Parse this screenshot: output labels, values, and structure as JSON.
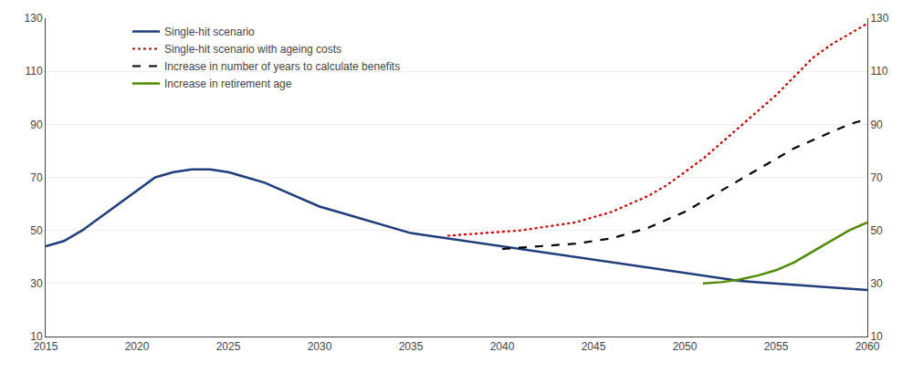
{
  "chart_data": {
    "type": "line",
    "x": [
      2015,
      2016,
      2017,
      2018,
      2019,
      2020,
      2021,
      2022,
      2023,
      2024,
      2025,
      2026,
      2027,
      2028,
      2029,
      2030,
      2031,
      2032,
      2033,
      2034,
      2035,
      2036,
      2037,
      2038,
      2039,
      2040,
      2041,
      2042,
      2043,
      2044,
      2045,
      2046,
      2047,
      2048,
      2049,
      2050,
      2051,
      2052,
      2053,
      2054,
      2055,
      2056,
      2057,
      2058,
      2059,
      2060
    ],
    "series": [
      {
        "name": "Single-hit scenario",
        "color": "#1f3d7a",
        "line_style": "solid",
        "values": [
          44,
          46,
          50,
          55,
          60,
          65,
          70,
          72,
          73,
          73,
          72,
          70,
          68,
          65,
          62,
          59,
          57,
          55,
          53,
          51,
          49,
          48,
          47,
          46,
          45,
          44,
          43,
          42,
          41,
          40,
          39,
          38,
          37,
          36,
          35,
          34,
          33,
          32,
          31,
          30.5,
          30,
          29.5,
          29,
          28.5,
          28,
          27.5
        ]
      },
      {
        "name": "Single-hit scenario with ageing costs",
        "color": "#cc0000",
        "line_style": "dotted",
        "values": [
          null,
          null,
          null,
          null,
          null,
          null,
          null,
          null,
          null,
          null,
          null,
          null,
          null,
          null,
          null,
          null,
          null,
          null,
          null,
          null,
          null,
          null,
          48,
          48.5,
          49,
          49.5,
          50,
          51,
          52,
          53,
          55,
          57,
          60,
          63,
          67,
          72,
          77,
          83,
          89,
          95,
          101,
          108,
          115,
          120,
          124,
          128
        ]
      },
      {
        "name": "Increase in number of years to calculate benefits",
        "color": "#000000",
        "line_style": "dashed",
        "values": [
          null,
          null,
          null,
          null,
          null,
          null,
          null,
          null,
          null,
          null,
          null,
          null,
          null,
          null,
          null,
          null,
          null,
          null,
          null,
          null,
          null,
          null,
          null,
          null,
          null,
          43,
          43.5,
          44,
          44.5,
          45,
          46,
          47,
          49,
          51,
          54,
          57,
          61,
          65,
          69,
          73,
          77,
          81,
          84,
          87,
          90,
          92
        ]
      },
      {
        "name": "Increase in retirement age",
        "color": "#4f8a00",
        "line_style": "solid",
        "values": [
          null,
          null,
          null,
          null,
          null,
          null,
          null,
          null,
          null,
          null,
          null,
          null,
          null,
          null,
          null,
          null,
          null,
          null,
          null,
          null,
          null,
          null,
          null,
          null,
          null,
          null,
          null,
          null,
          null,
          null,
          null,
          null,
          null,
          null,
          null,
          null,
          30,
          30.5,
          31.5,
          33,
          35,
          38,
          42,
          46,
          50,
          53
        ]
      }
    ],
    "xlim": [
      2015,
      2060
    ],
    "ylim": [
      10,
      130
    ],
    "xticks": [
      2015,
      2020,
      2025,
      2030,
      2035,
      2040,
      2045,
      2050,
      2055,
      2060
    ],
    "yticks": [
      10,
      30,
      50,
      70,
      90,
      110,
      130
    ],
    "y2lim": [
      10,
      130
    ],
    "y2ticks": [
      10,
      30,
      50,
      70,
      90,
      110,
      130
    ],
    "grid": "y",
    "legend": "upper left"
  }
}
